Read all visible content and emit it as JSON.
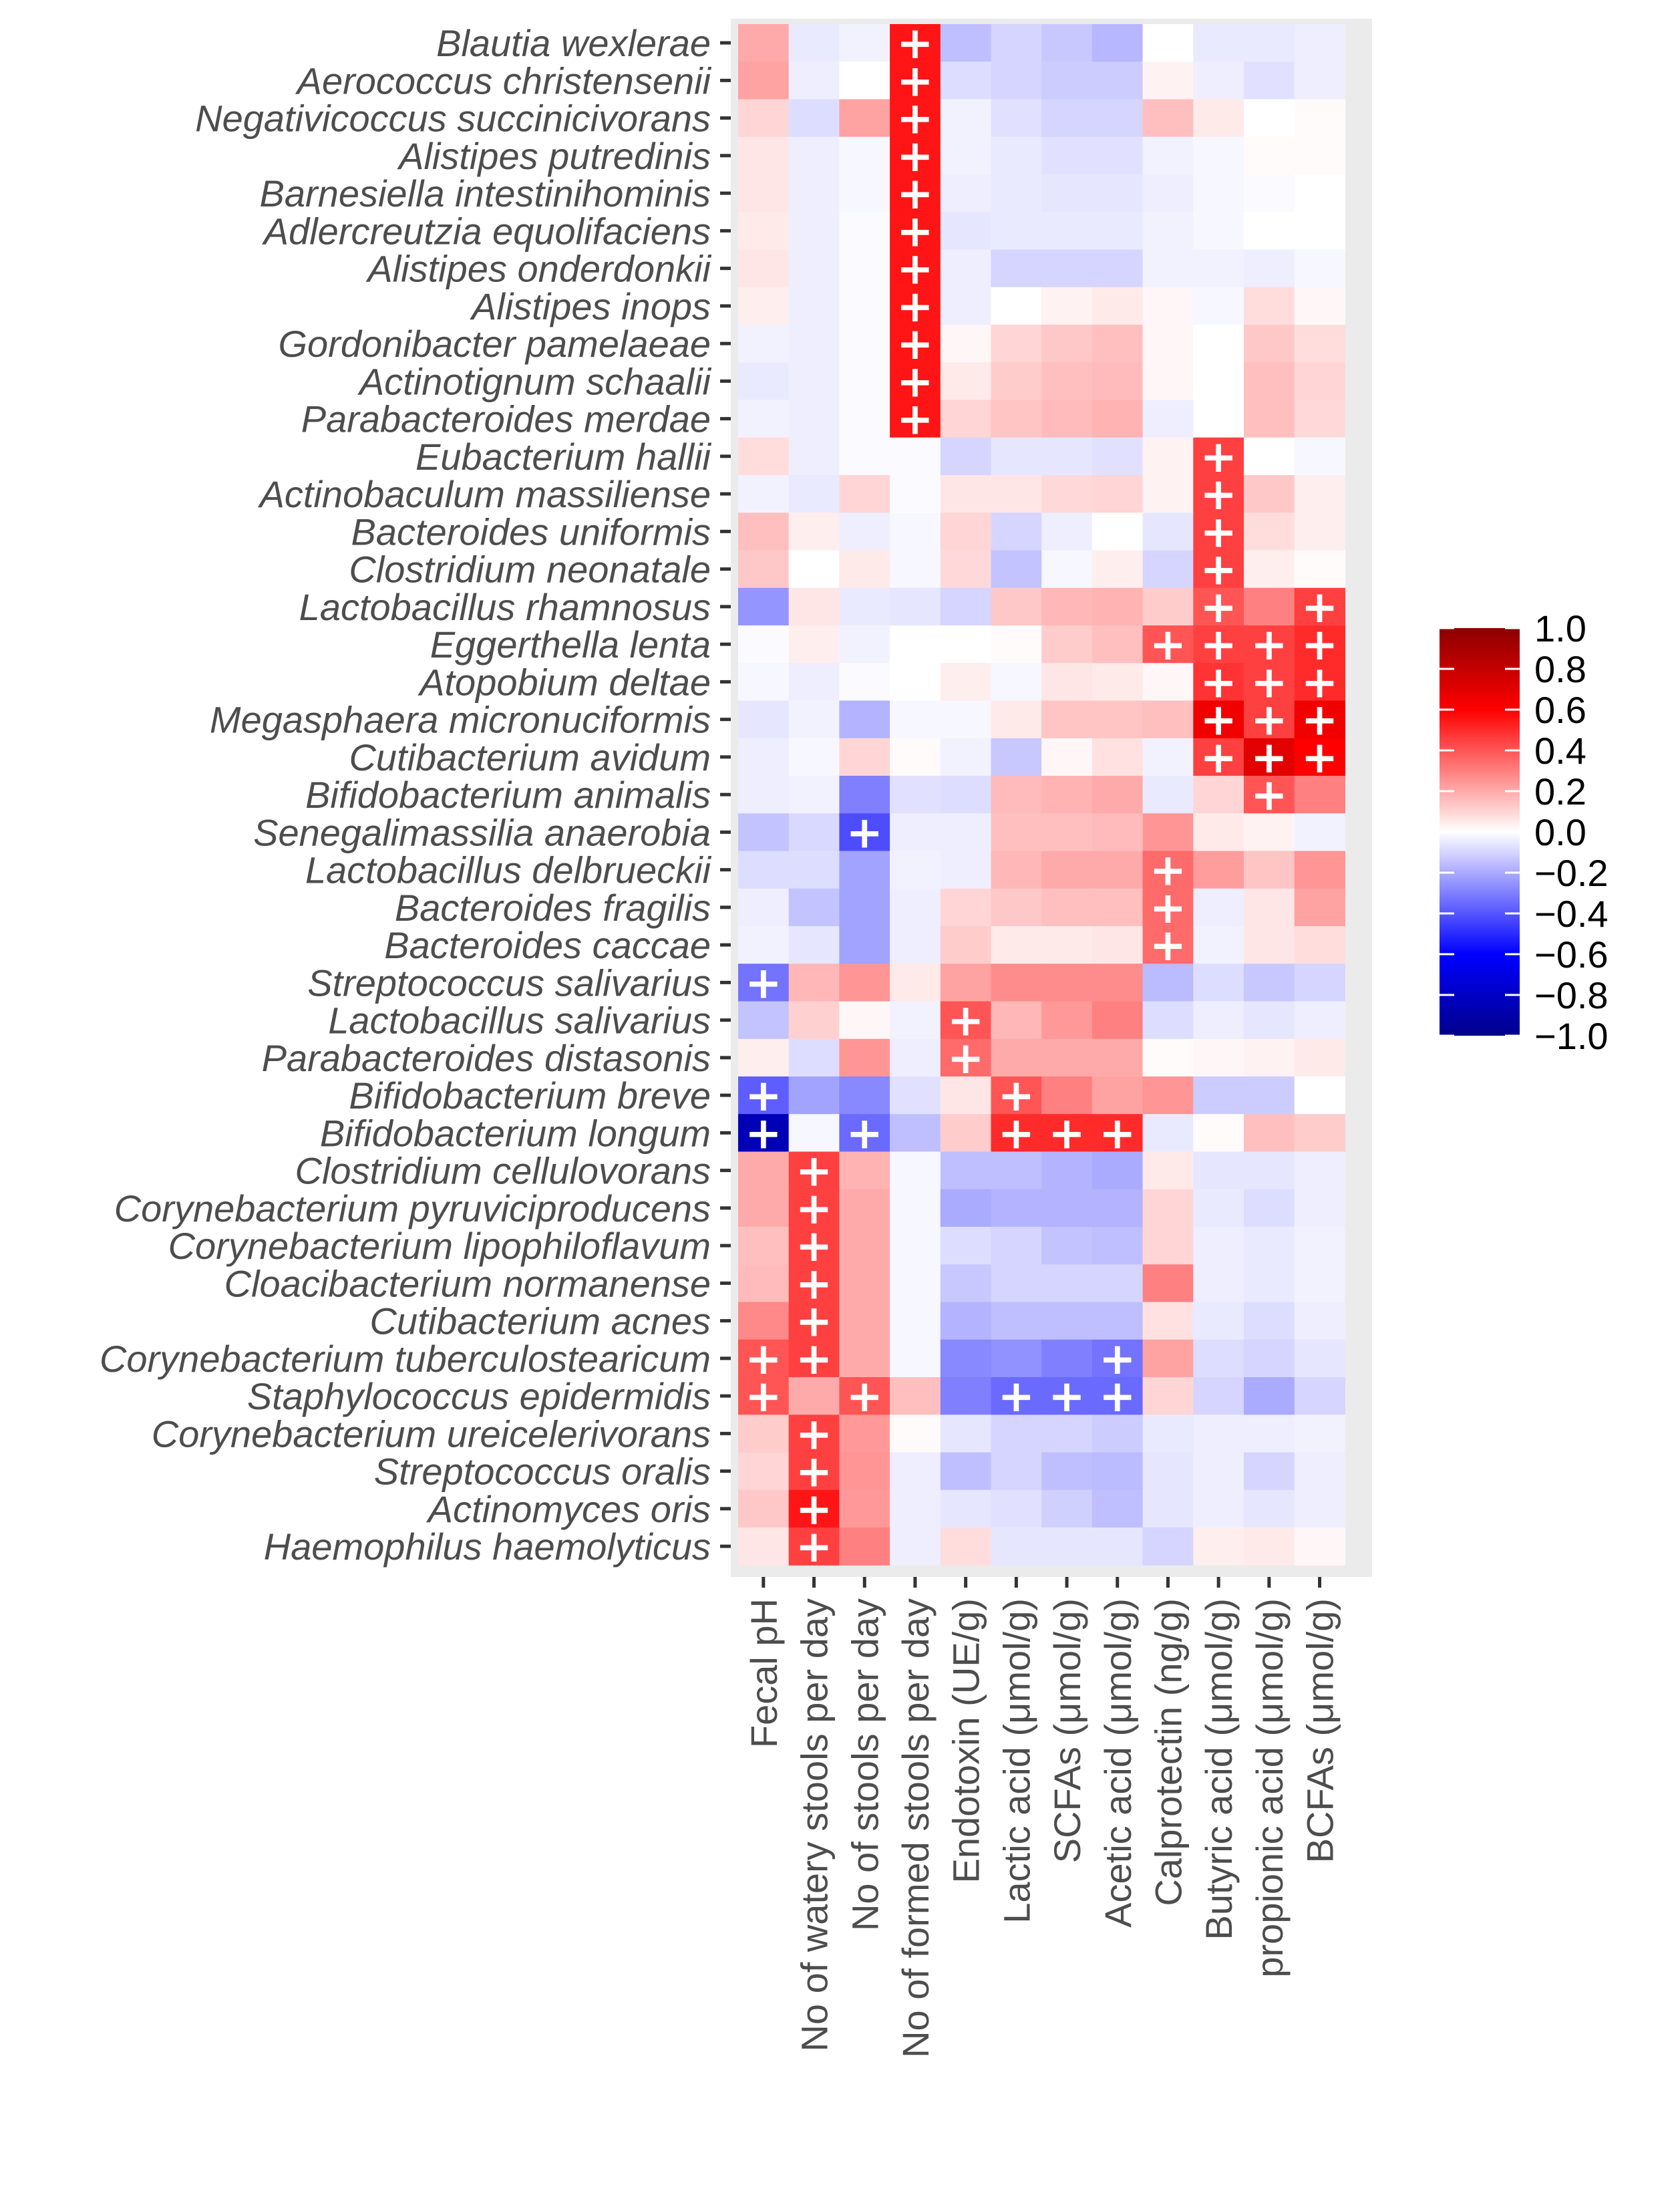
{
  "chart_data": {
    "type": "heatmap",
    "title": "",
    "xlabel": "",
    "ylabel": "",
    "rows": [
      "Blautia wexlerae",
      "Aerococcus christensenii",
      "Negativicoccus succinicivorans",
      "Alistipes putredinis",
      "Barnesiella intestinihominis",
      "Adlercreutzia equolifaciens",
      "Alistipes onderdonkii",
      "Alistipes inops",
      "Gordonibacter pamelaeae",
      "Actinotignum schaalii",
      "Parabacteroides merdae",
      "Eubacterium hallii",
      "Actinobaculum massiliense",
      "Bacteroides uniformis",
      "Clostridium neonatale",
      "Lactobacillus rhamnosus",
      "Eggerthella lenta",
      "Atopobium deltae",
      "Megasphaera micronuciformis",
      "Cutibacterium avidum",
      "Bifidobacterium animalis",
      "Senegalimassilia anaerobia",
      "Lactobacillus delbrueckii",
      "Bacteroides fragilis",
      "Bacteroides caccae",
      "Streptococcus salivarius",
      "Lactobacillus salivarius",
      "Parabacteroides distasonis",
      "Bifidobacterium breve",
      "Bifidobacterium longum",
      "Clostridium cellulovorans",
      "Corynebacterium pyruviciproducens",
      "Corynebacterium lipophiloflavum",
      "Cloacibacterium normanense",
      "Cutibacterium acnes",
      "Corynebacterium tuberculostearicum",
      "Staphylococcus epidermidis",
      "Corynebacterium ureicelerivorans",
      "Streptococcus oralis",
      "Actinomyces oris",
      "Haemophilus haemolyticus"
    ],
    "columns": [
      "Fecal pH",
      "No of watery stools per day",
      "No of stools per day",
      "No of formed stools per day",
      "Endotoxin (UE/g)",
      "Lactic acid (μmol/g)",
      "SCFAs (μmol/g)",
      "Acetic acid (μmol/g)",
      "Calprotectin (ng/g)",
      "Butyric acid (μmol/g)",
      "propionic acid (μmol/g)",
      "BCFAs (μmol/g)"
    ],
    "values": [
      [
        0.2,
        -0.05,
        -0.03,
        0.55,
        -0.15,
        -0.1,
        -0.13,
        -0.17,
        0.0,
        -0.05,
        -0.05,
        -0.04
      ],
      [
        0.22,
        -0.04,
        0.0,
        0.55,
        -0.08,
        -0.1,
        -0.12,
        -0.12,
        0.03,
        -0.04,
        -0.07,
        -0.04
      ],
      [
        0.1,
        -0.08,
        0.22,
        0.55,
        -0.03,
        -0.07,
        -0.1,
        -0.1,
        0.15,
        0.05,
        0.0,
        0.01
      ],
      [
        0.06,
        -0.04,
        -0.02,
        0.55,
        -0.03,
        -0.05,
        -0.07,
        -0.07,
        -0.03,
        -0.02,
        0.01,
        0.01
      ],
      [
        0.06,
        -0.04,
        -0.02,
        0.55,
        -0.04,
        -0.05,
        -0.06,
        -0.06,
        -0.04,
        -0.02,
        -0.01,
        0.0
      ],
      [
        0.05,
        -0.04,
        -0.01,
        0.55,
        -0.06,
        -0.05,
        -0.05,
        -0.05,
        -0.03,
        -0.02,
        0.0,
        0.0
      ],
      [
        0.06,
        -0.04,
        -0.01,
        0.55,
        -0.04,
        -0.1,
        -0.1,
        -0.1,
        -0.03,
        -0.03,
        -0.04,
        -0.02
      ],
      [
        0.04,
        -0.04,
        -0.01,
        0.55,
        -0.04,
        0.0,
        0.03,
        0.05,
        0.02,
        -0.02,
        0.08,
        0.02
      ],
      [
        -0.03,
        -0.04,
        -0.01,
        0.55,
        0.02,
        0.1,
        0.13,
        0.15,
        0.02,
        0.0,
        0.13,
        0.08
      ],
      [
        -0.05,
        -0.04,
        -0.01,
        0.55,
        0.05,
        0.12,
        0.15,
        0.16,
        0.02,
        0.0,
        0.15,
        0.1
      ],
      [
        -0.03,
        -0.04,
        -0.01,
        0.55,
        0.1,
        0.14,
        0.16,
        0.18,
        -0.04,
        0.0,
        0.15,
        0.09
      ],
      [
        0.08,
        -0.04,
        -0.01,
        -0.01,
        -0.1,
        -0.06,
        -0.06,
        -0.07,
        0.03,
        0.45,
        0.0,
        -0.02
      ],
      [
        -0.03,
        -0.05,
        0.1,
        -0.01,
        0.06,
        0.06,
        0.09,
        0.1,
        0.03,
        0.45,
        0.13,
        0.04
      ],
      [
        0.15,
        0.04,
        -0.04,
        -0.02,
        0.1,
        -0.1,
        -0.04,
        0.0,
        -0.06,
        0.45,
        0.08,
        0.04
      ],
      [
        0.13,
        0.0,
        0.05,
        -0.02,
        0.09,
        -0.14,
        -0.02,
        0.04,
        -0.1,
        0.45,
        0.04,
        0.01
      ],
      [
        -0.25,
        0.06,
        -0.05,
        -0.06,
        -0.1,
        0.13,
        0.17,
        0.18,
        0.12,
        0.4,
        0.3,
        0.45
      ],
      [
        -0.01,
        0.04,
        -0.03,
        0.0,
        0.0,
        0.01,
        0.12,
        0.15,
        0.4,
        0.45,
        0.45,
        0.5
      ],
      [
        -0.02,
        -0.04,
        -0.01,
        0.0,
        0.04,
        -0.02,
        0.06,
        0.05,
        0.02,
        0.48,
        0.45,
        0.5
      ],
      [
        -0.06,
        -0.03,
        -0.18,
        -0.02,
        -0.02,
        0.05,
        0.14,
        0.14,
        0.15,
        0.65,
        0.45,
        0.65
      ],
      [
        -0.04,
        -0.02,
        0.1,
        0.01,
        -0.03,
        -0.13,
        0.02,
        0.07,
        -0.03,
        0.45,
        0.7,
        0.6
      ],
      [
        -0.04,
        -0.03,
        -0.3,
        -0.07,
        -0.08,
        0.16,
        0.18,
        0.2,
        -0.05,
        0.1,
        0.4,
        0.3
      ],
      [
        -0.14,
        -0.09,
        -0.42,
        -0.04,
        -0.04,
        0.15,
        0.15,
        0.16,
        0.25,
        0.05,
        0.03,
        -0.03
      ],
      [
        -0.08,
        -0.08,
        -0.22,
        -0.03,
        -0.04,
        0.17,
        0.2,
        0.2,
        0.35,
        0.23,
        0.14,
        0.25
      ],
      [
        -0.04,
        -0.14,
        -0.22,
        -0.04,
        0.1,
        0.13,
        0.15,
        0.15,
        0.35,
        -0.04,
        0.06,
        0.22
      ],
      [
        -0.03,
        -0.06,
        -0.22,
        -0.04,
        0.12,
        0.05,
        0.05,
        0.06,
        0.35,
        -0.03,
        0.06,
        0.08
      ],
      [
        -0.33,
        0.17,
        0.25,
        0.05,
        0.22,
        0.27,
        0.27,
        0.27,
        -0.16,
        -0.08,
        -0.13,
        -0.1
      ],
      [
        -0.14,
        0.11,
        0.02,
        -0.03,
        0.4,
        0.17,
        0.24,
        0.3,
        -0.08,
        -0.04,
        -0.06,
        -0.04
      ],
      [
        0.04,
        -0.08,
        0.25,
        -0.04,
        0.35,
        0.2,
        0.2,
        0.2,
        0.01,
        0.02,
        0.03,
        0.05
      ],
      [
        -0.38,
        -0.22,
        -0.28,
        -0.07,
        0.06,
        0.4,
        0.3,
        0.22,
        0.25,
        -0.12,
        -0.12,
        0.0
      ],
      [
        -0.85,
        -0.02,
        -0.35,
        -0.15,
        0.12,
        0.5,
        0.5,
        0.5,
        -0.05,
        0.01,
        0.15,
        0.12
      ],
      [
        0.2,
        0.45,
        0.18,
        -0.02,
        -0.15,
        -0.15,
        -0.18,
        -0.2,
        0.05,
        -0.06,
        -0.06,
        -0.04
      ],
      [
        0.2,
        0.45,
        0.2,
        -0.02,
        -0.2,
        -0.18,
        -0.18,
        -0.18,
        0.1,
        -0.05,
        -0.08,
        -0.04
      ],
      [
        0.15,
        0.45,
        0.2,
        -0.02,
        -0.08,
        -0.1,
        -0.14,
        -0.15,
        0.1,
        -0.04,
        -0.05,
        -0.03
      ],
      [
        0.16,
        0.45,
        0.2,
        -0.02,
        -0.13,
        -0.1,
        -0.1,
        -0.1,
        0.3,
        -0.04,
        -0.05,
        -0.03
      ],
      [
        0.28,
        0.45,
        0.2,
        -0.02,
        -0.18,
        -0.15,
        -0.15,
        -0.15,
        0.07,
        -0.05,
        -0.08,
        -0.04
      ],
      [
        0.4,
        0.45,
        0.2,
        -0.02,
        -0.28,
        -0.26,
        -0.3,
        -0.33,
        0.22,
        -0.08,
        -0.1,
        -0.06
      ],
      [
        0.4,
        0.2,
        0.4,
        0.15,
        -0.3,
        -0.35,
        -0.35,
        -0.35,
        0.1,
        -0.1,
        -0.2,
        -0.1
      ],
      [
        0.12,
        0.45,
        0.24,
        0.01,
        -0.06,
        -0.1,
        -0.1,
        -0.12,
        -0.05,
        -0.04,
        -0.04,
        -0.03
      ],
      [
        0.1,
        0.45,
        0.25,
        -0.04,
        -0.15,
        -0.1,
        -0.15,
        -0.16,
        -0.06,
        -0.04,
        -0.1,
        -0.04
      ],
      [
        0.13,
        0.55,
        0.24,
        -0.04,
        -0.06,
        -0.07,
        -0.11,
        -0.15,
        -0.06,
        -0.04,
        -0.06,
        -0.04
      ],
      [
        0.06,
        0.45,
        0.3,
        -0.04,
        0.08,
        -0.06,
        -0.06,
        -0.06,
        -0.1,
        0.04,
        0.05,
        0.02
      ]
    ],
    "significance_marker": "+",
    "significant": [
      [
        0,
        3
      ],
      [
        1,
        3
      ],
      [
        2,
        3
      ],
      [
        3,
        3
      ],
      [
        4,
        3
      ],
      [
        5,
        3
      ],
      [
        6,
        3
      ],
      [
        7,
        3
      ],
      [
        8,
        3
      ],
      [
        9,
        3
      ],
      [
        10,
        3
      ],
      [
        11,
        9
      ],
      [
        12,
        9
      ],
      [
        13,
        9
      ],
      [
        14,
        9
      ],
      [
        15,
        9
      ],
      [
        15,
        11
      ],
      [
        16,
        8
      ],
      [
        16,
        9
      ],
      [
        16,
        10
      ],
      [
        16,
        11
      ],
      [
        17,
        9
      ],
      [
        17,
        10
      ],
      [
        17,
        11
      ],
      [
        18,
        9
      ],
      [
        18,
        10
      ],
      [
        18,
        11
      ],
      [
        19,
        9
      ],
      [
        19,
        10
      ],
      [
        19,
        11
      ],
      [
        20,
        10
      ],
      [
        21,
        2
      ],
      [
        22,
        8
      ],
      [
        23,
        8
      ],
      [
        24,
        8
      ],
      [
        25,
        0
      ],
      [
        26,
        4
      ],
      [
        27,
        4
      ],
      [
        28,
        0
      ],
      [
        28,
        5
      ],
      [
        29,
        0
      ],
      [
        29,
        2
      ],
      [
        29,
        5
      ],
      [
        29,
        6
      ],
      [
        29,
        7
      ],
      [
        30,
        1
      ],
      [
        31,
        1
      ],
      [
        32,
        1
      ],
      [
        33,
        1
      ],
      [
        34,
        1
      ],
      [
        35,
        0
      ],
      [
        35,
        1
      ],
      [
        35,
        7
      ],
      [
        36,
        0
      ],
      [
        36,
        2
      ],
      [
        36,
        5
      ],
      [
        36,
        6
      ],
      [
        36,
        7
      ],
      [
        37,
        1
      ],
      [
        38,
        1
      ],
      [
        39,
        1
      ],
      [
        40,
        1
      ]
    ],
    "color_scale": {
      "min": -1.0,
      "max": 1.0,
      "low_color": "#00008b",
      "mid_low_color": "#0000ff",
      "mid_color": "#ffffff",
      "mid_high_color": "#ff0000",
      "high_color": "#8b0000"
    },
    "legend": {
      "position": "right",
      "ticks": [
        "1.0",
        "0.8",
        "0.6",
        "0.4",
        "0.2",
        "0.0",
        "−0.2",
        "−0.4",
        "−0.6",
        "−0.8",
        "−1.0"
      ],
      "tick_values": [
        1.0,
        0.8,
        0.6,
        0.4,
        0.2,
        0.0,
        -0.2,
        -0.4,
        -0.6,
        -0.8,
        -1.0
      ]
    },
    "colors": {
      "panel_background": "#ebebeb",
      "axis_text": "#4d4d4d",
      "marker": "#ffffff"
    }
  }
}
